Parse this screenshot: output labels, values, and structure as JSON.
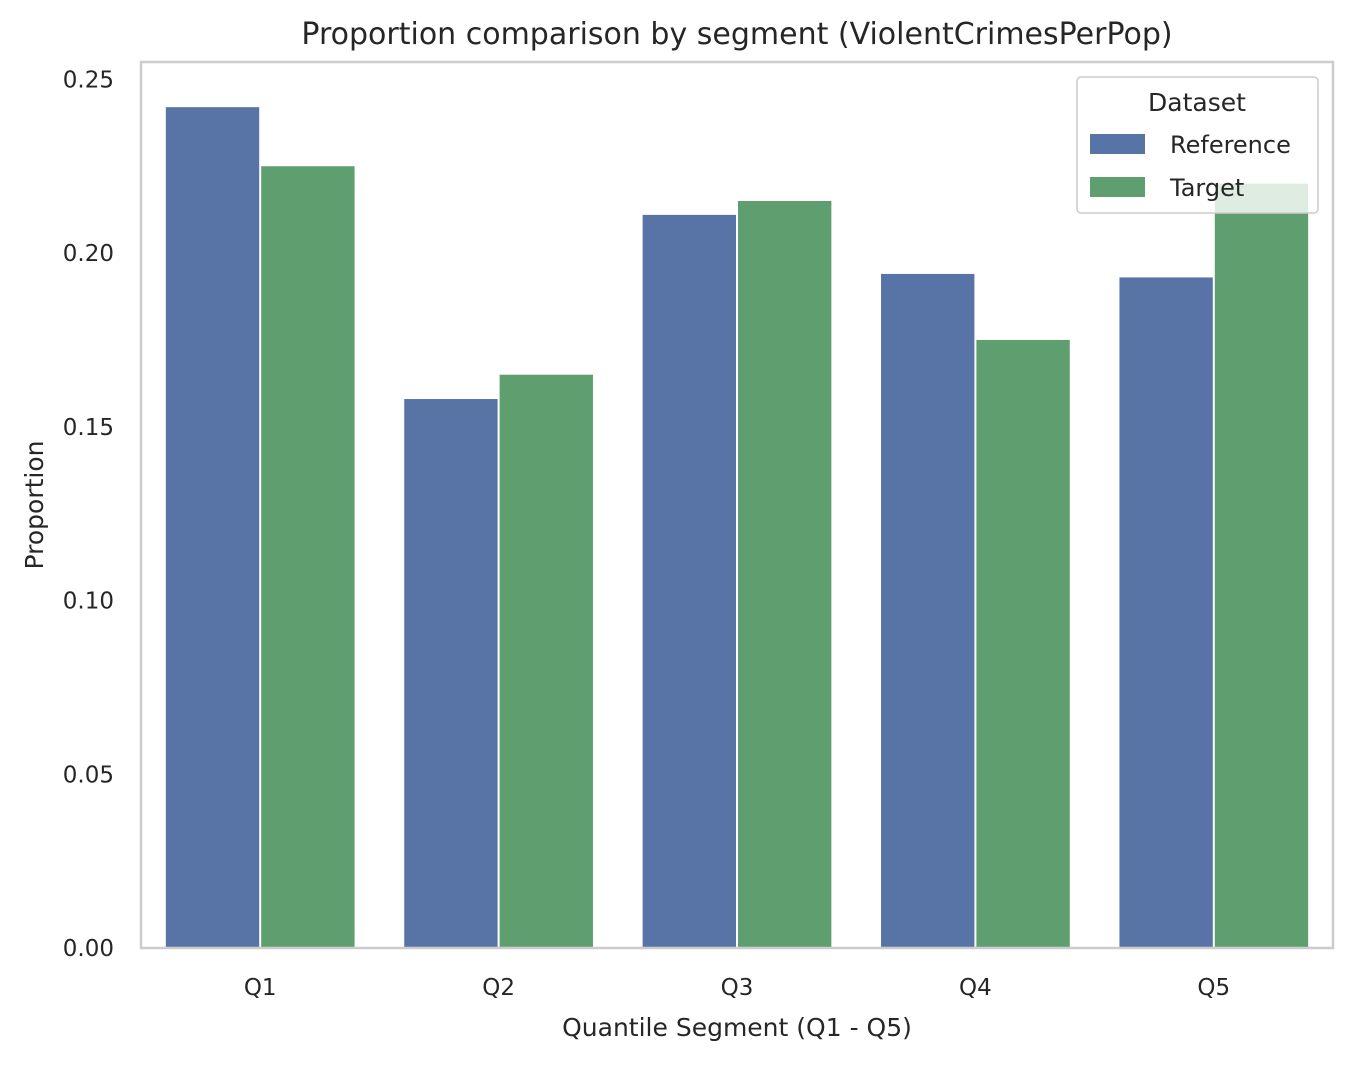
{
  "chart_data": {
    "type": "bar",
    "title": "Proportion comparison by segment (ViolentCrimesPerPop)",
    "xlabel": "Quantile Segment (Q1 - Q5)",
    "ylabel": "Proportion",
    "categories": [
      "Q1",
      "Q2",
      "Q3",
      "Q4",
      "Q5"
    ],
    "series": [
      {
        "name": "Reference",
        "color": "#5874a6",
        "values": [
          0.242,
          0.158,
          0.211,
          0.194,
          0.193
        ]
      },
      {
        "name": "Target",
        "color": "#5f9e6e",
        "values": [
          0.225,
          0.165,
          0.215,
          0.175,
          0.22
        ]
      }
    ],
    "ylim": [
      0,
      0.255
    ],
    "yticks": [
      0.0,
      0.05,
      0.1,
      0.15,
      0.2,
      0.25
    ],
    "ytick_labels": [
      "0.00",
      "0.05",
      "0.10",
      "0.15",
      "0.20",
      "0.25"
    ],
    "grid": false,
    "legend": {
      "title": "Dataset",
      "placement": "top-right"
    }
  }
}
